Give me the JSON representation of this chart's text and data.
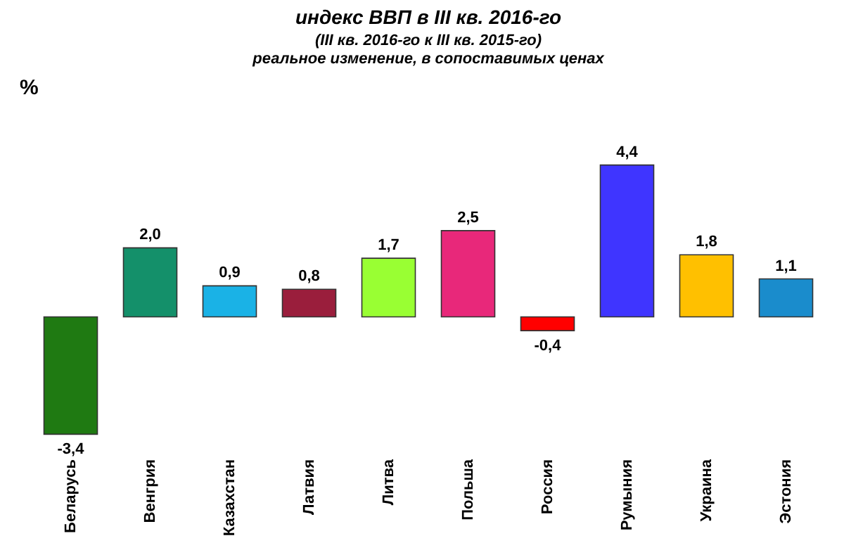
{
  "chart_data": {
    "type": "bar",
    "title": "индекс ВВП в III кв. 2016-го",
    "subtitle": "(III кв. 2016-го к III кв. 2015-го)\nреальное изменение, в сопоставимых ценах",
    "ylabel": "%",
    "categories": [
      "Беларусь",
      "Венгрия",
      "Казахстан",
      "Латвия",
      "Литва",
      "Польша",
      "Россия",
      "Румыния",
      "Украина",
      "Эстония"
    ],
    "values": [
      -3.4,
      2.0,
      0.9,
      0.8,
      1.7,
      2.5,
      -0.4,
      4.4,
      1.8,
      1.1
    ],
    "value_labels": [
      "-3,4",
      "2,0",
      "0,9",
      "0,8",
      "1,7",
      "2,5",
      "-0,4",
      "4,4",
      "1,8",
      "1,1"
    ],
    "colors": [
      "#1f7a12",
      "#14906a",
      "#1ab2e6",
      "#9a1e3c",
      "#99ff33",
      "#e8287a",
      "#ff0000",
      "#3f35ff",
      "#ffc000",
      "#1a8ccc"
    ],
    "grid": false
  }
}
